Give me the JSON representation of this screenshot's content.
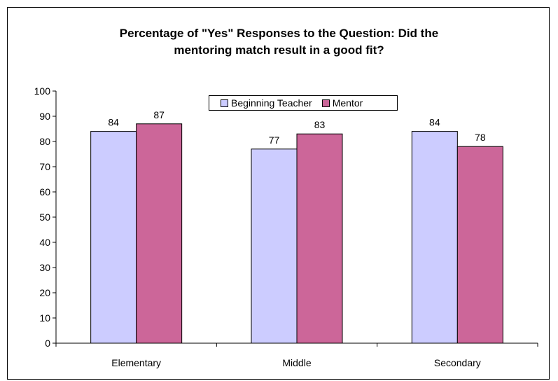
{
  "chart_data": {
    "type": "bar",
    "title": [
      "Percentage of \"Yes\" Responses to the Question: Did the",
      "mentoring match result in a good fit?"
    ],
    "categories": [
      "Elementary",
      "Middle",
      "Secondary"
    ],
    "series": [
      {
        "name": "Beginning Teacher",
        "values": [
          84,
          77,
          84
        ],
        "color": "#ccccff"
      },
      {
        "name": "Mentor",
        "values": [
          87,
          83,
          78
        ],
        "color": "#cc6699"
      }
    ],
    "ylim": [
      0,
      100
    ],
    "yticks": [
      0,
      10,
      20,
      30,
      40,
      50,
      60,
      70,
      80,
      90,
      100
    ],
    "legend_position": "top-center",
    "grid": false
  }
}
